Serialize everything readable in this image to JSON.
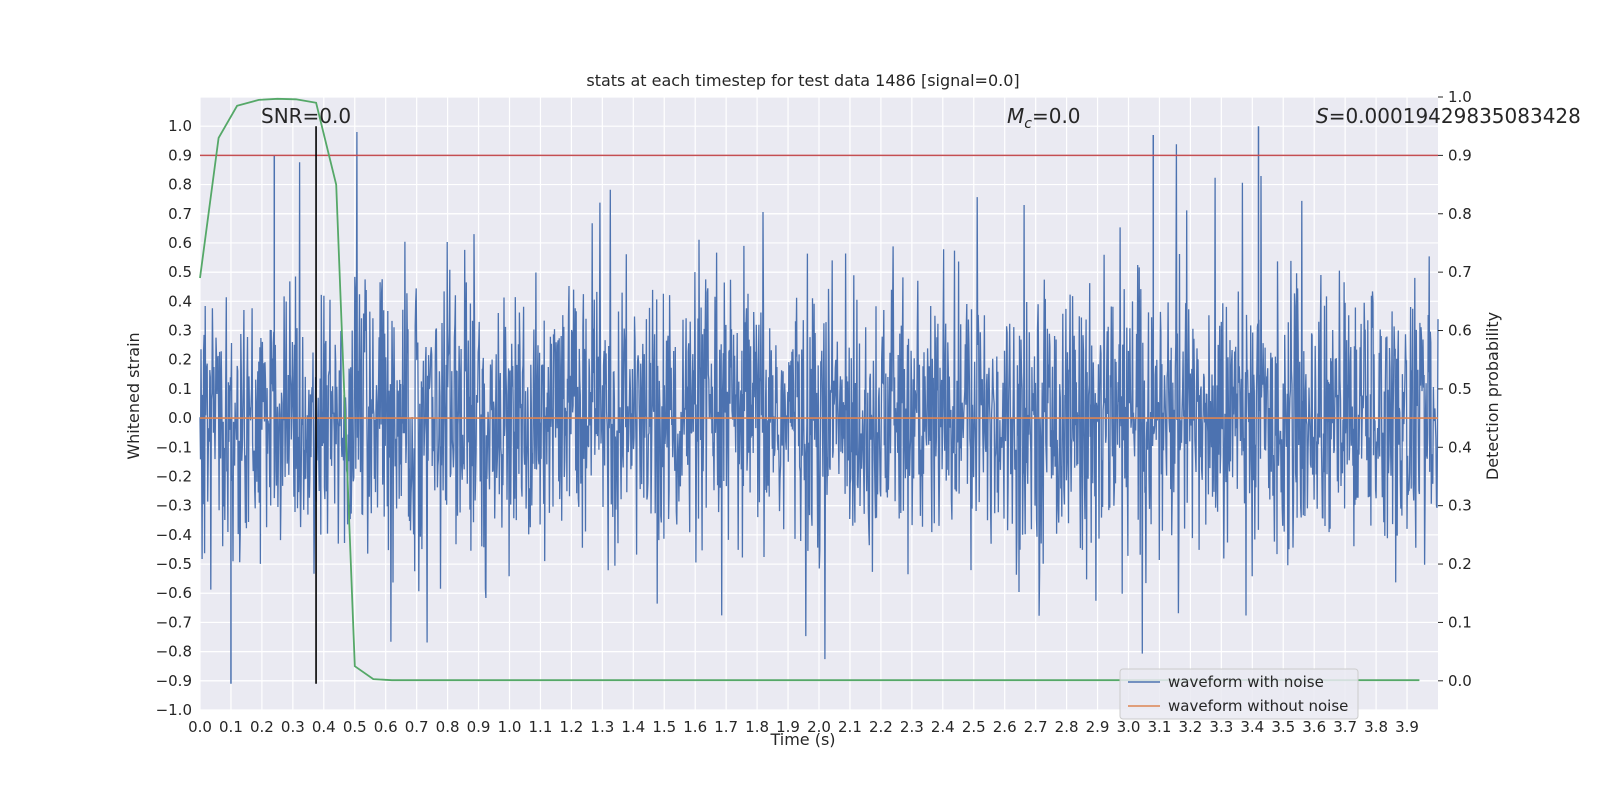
{
  "chart_data": {
    "type": "line",
    "title": "stats at each timestep for test data 1486 [signal=0.0]",
    "xlabel": "Time (s)",
    "ylabel": "Whitened strain",
    "ylabel_right": "Detection probability",
    "xlim": [
      0.0,
      4.0
    ],
    "ylim": [
      -1.0,
      1.1
    ],
    "ylim_right": [
      -0.05,
      1.0
    ],
    "x_ticks": [
      "0.0",
      "0.1",
      "0.2",
      "0.3",
      "0.4",
      "0.5",
      "0.6",
      "0.7",
      "0.8",
      "0.9",
      "1.0",
      "1.1",
      "1.2",
      "1.3",
      "1.4",
      "1.5",
      "1.6",
      "1.7",
      "1.8",
      "1.9",
      "2.0",
      "2.1",
      "2.2",
      "2.3",
      "2.4",
      "2.5",
      "2.6",
      "2.7",
      "2.8",
      "2.9",
      "3.0",
      "3.1",
      "3.2",
      "3.3",
      "3.4",
      "3.5",
      "3.6",
      "3.7",
      "3.8",
      "3.9"
    ],
    "y_ticks": [
      "1.0",
      "0.9",
      "0.8",
      "0.7",
      "0.6",
      "0.5",
      "0.4",
      "0.3",
      "0.2",
      "0.1",
      "0.0",
      "−0.1",
      "−0.2",
      "−0.3",
      "−0.4",
      "−0.5",
      "−0.6",
      "−0.7",
      "−0.8",
      "−0.9",
      "−1.0"
    ],
    "y_ticks_right": [
      "1.0",
      "0.9",
      "0.8",
      "0.7",
      "0.6",
      "0.5",
      "0.4",
      "0.3",
      "0.2",
      "0.1",
      "0.0"
    ],
    "annotations": {
      "snr": "SNR=0.0",
      "mc_symbol": "M",
      "mc_sub": "c",
      "mc_value": "=0.0",
      "s_symbol": "S",
      "s_value": "=0.00019429835083428"
    },
    "legend": {
      "location": "lower right",
      "entries": [
        {
          "label": "waveform with noise",
          "color": "#4c72b0"
        },
        {
          "label": "waveform without noise",
          "color": "#dd8452"
        }
      ]
    },
    "series": [
      {
        "name": "waveform with noise",
        "axis": "left",
        "color": "#4c72b0",
        "kind": "noise",
        "amplitude_envelope": 0.45,
        "peak_min": -0.91,
        "peak_max": 1.0
      },
      {
        "name": "waveform without noise",
        "axis": "left",
        "color": "#dd8452",
        "kind": "constant",
        "value": 0.0
      },
      {
        "name": "detection probability",
        "axis": "right",
        "color": "#55a868",
        "x": [
          0.0,
          0.06,
          0.12,
          0.19,
          0.25,
          0.31,
          0.375,
          0.44,
          0.5,
          0.56,
          0.62,
          3.94
        ],
        "values": [
          0.69,
          0.93,
          0.985,
          0.995,
          0.997,
          0.996,
          0.99,
          0.85,
          0.025,
          0.003,
          0.001,
          0.001
        ]
      }
    ],
    "threshold_right": 0.9,
    "threshold_color": "#c44e52",
    "marker_line": {
      "x": 0.375,
      "y_from": -0.91,
      "y_to": 1.0,
      "color": "#000000"
    },
    "grid": true,
    "colors": {
      "background": "#eaeaf2",
      "grid": "#ffffff",
      "text": "#262626"
    }
  }
}
